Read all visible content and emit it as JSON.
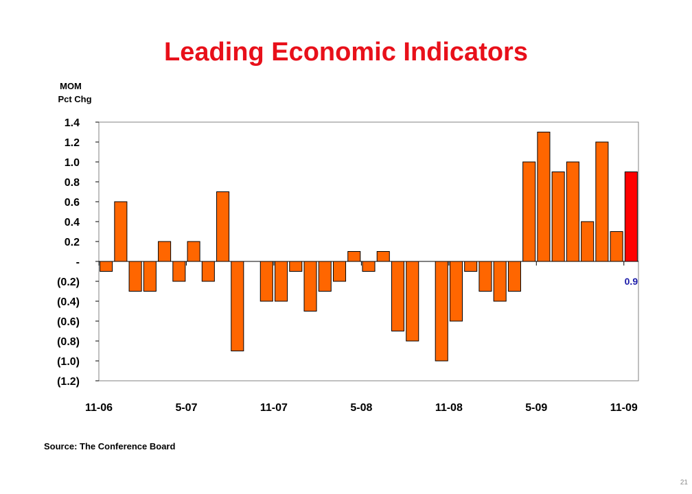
{
  "title": "Leading Economic Indicators",
  "source": "Source: The Conference Board",
  "page_number": "21",
  "colors": {
    "bar": "#ff6600",
    "highlight": "#ff0000",
    "callout": "#1a1aa8",
    "title": "#e8101a"
  },
  "chart_data": {
    "type": "bar",
    "title": "Leading Economic Indicators",
    "ylabel_lines": [
      "MOM",
      "Pct Chg"
    ],
    "xlabel": "",
    "ylim": [
      -1.2,
      1.4
    ],
    "y_tick_labels": [
      "1.4",
      "1.2",
      "1.0",
      "0.8",
      "0.6",
      "0.4",
      "0.2",
      "-",
      "(0.2)",
      "(0.4)",
      "(0.6)",
      "(0.8)",
      "(1.0)",
      "(1.2)"
    ],
    "y_tick_values": [
      1.4,
      1.2,
      1.0,
      0.8,
      0.6,
      0.4,
      0.2,
      0,
      -0.2,
      -0.4,
      -0.6,
      -0.8,
      -1.0,
      -1.2
    ],
    "x_tick_labels": [
      "11-06",
      "5-07",
      "11-07",
      "5-08",
      "11-08",
      "5-09",
      "11-09"
    ],
    "categories": [
      "11-06",
      "12-06",
      "1-07",
      "2-07",
      "3-07",
      "4-07",
      "5-07",
      "6-07",
      "7-07",
      "8-07",
      "9-07",
      "10-07",
      "11-07",
      "12-07",
      "1-08",
      "2-08",
      "3-08",
      "4-08",
      "5-08",
      "6-08",
      "7-08",
      "8-08",
      "9-08",
      "10-08",
      "11-08",
      "12-08",
      "1-09",
      "2-09",
      "3-09",
      "4-09",
      "5-09",
      "6-09",
      "7-09",
      "8-09",
      "9-09",
      "10-09",
      "11-09"
    ],
    "values": [
      -0.1,
      0.6,
      -0.3,
      -0.3,
      0.2,
      -0.2,
      0.2,
      -0.2,
      0.7,
      -0.9,
      0.0,
      -0.4,
      -0.4,
      -0.1,
      -0.5,
      -0.3,
      -0.2,
      0.1,
      -0.1,
      0.1,
      -0.7,
      -0.8,
      0.0,
      -1.0,
      -0.6,
      -0.1,
      -0.3,
      -0.4,
      -0.3,
      1.0,
      1.3,
      0.9,
      1.0,
      0.4,
      1.2,
      0.3,
      0.9
    ],
    "highlight_index": 36,
    "annotation": {
      "text": "0.9",
      "category": "11-09"
    },
    "grid": false,
    "legend": "none"
  }
}
